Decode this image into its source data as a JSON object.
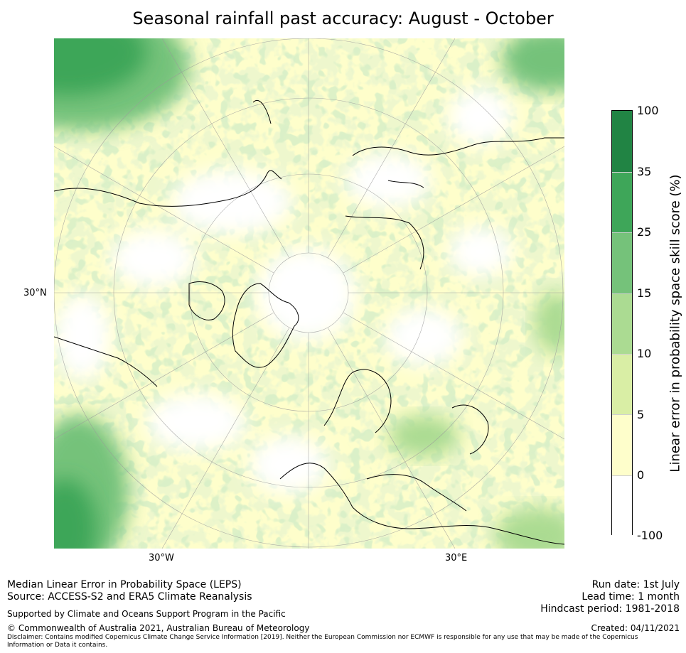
{
  "title": "Seasonal rainfall past accuracy: August - October",
  "map": {
    "projection": "north polar stereographic",
    "tick_labels": {
      "left": "30°N",
      "bottom_left": "30°W",
      "bottom_right": "30°E"
    },
    "colors": {
      "white": "#ffffff",
      "pale_yellow": "#fefecb",
      "light_green": "#d9eea5",
      "mid_green": "#abdb92",
      "green": "#75c27a",
      "strong_green": "#3ea659",
      "dark_green": "#218444"
    }
  },
  "colorbar": {
    "label": "Linear error in probability space skill score (%)",
    "ticks": [
      "100",
      "35",
      "25",
      "15",
      "10",
      "5",
      "0",
      "-100"
    ],
    "segments": [
      {
        "range": "35 to 100",
        "color": "#218444"
      },
      {
        "range": "25 to 35",
        "color": "#3ea659"
      },
      {
        "range": "15 to 25",
        "color": "#75c27a"
      },
      {
        "range": "10 to 15",
        "color": "#abdb92"
      },
      {
        "range": "5 to 10",
        "color": "#d9eea5"
      },
      {
        "range": "0 to 5",
        "color": "#fefecb"
      },
      {
        "range": "-100 to 0",
        "color": "#ffffff"
      }
    ]
  },
  "footer": {
    "method": "Median Linear Error in Probability Space (LEPS)",
    "source": "Source: ACCESS-S2 and ERA5 Climate Reanalysis",
    "support": "Supported by Climate and Oceans Support Program in the Pacific",
    "copyright": "© Commonwealth of Australia 2021, Australian Bureau of Meteorology",
    "disclaimer_line1": "Disclaimer: Contains modified Copernicus Climate Change Service Information [2019]. Neither the European Commission nor ECMWF is responsible for any use that may be made of the Copernicus",
    "disclaimer_line2": "Information or Data it contains.",
    "run_date": "Run date: 1st July",
    "lead_time": "Lead time: 1 month",
    "hindcast": "Hindcast period: 1981-2018",
    "created": "Created: 04/11/2021"
  }
}
